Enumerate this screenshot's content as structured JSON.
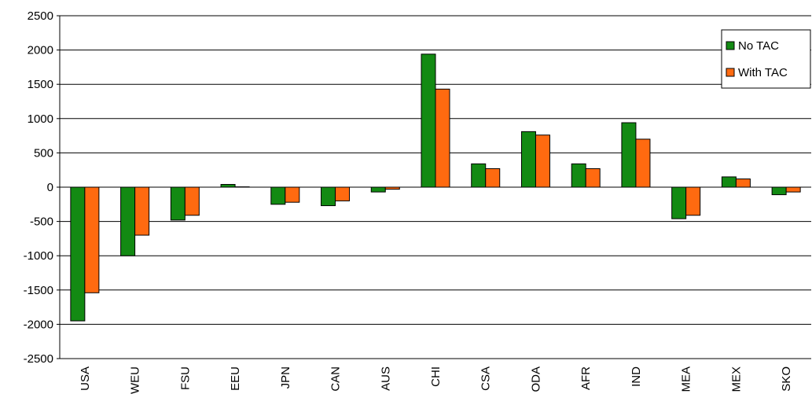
{
  "chart_data": {
    "type": "bar",
    "categories": [
      "USA",
      "WEU",
      "FSU",
      "EEU",
      "JPN",
      "CAN",
      "AUS",
      "CHI",
      "CSA",
      "ODA",
      "AFR",
      "IND",
      "MEA",
      "MEX",
      "SKO"
    ],
    "series": [
      {
        "name": "No TAC",
        "color": "#138a13",
        "values": [
          -1950,
          -1000,
          -480,
          40,
          -250,
          -270,
          -70,
          1940,
          340,
          810,
          340,
          940,
          -460,
          150,
          -110
        ]
      },
      {
        "name": "With TAC",
        "color": "#ff6a10",
        "values": [
          -1540,
          -700,
          -410,
          5,
          -220,
          -200,
          -30,
          1430,
          270,
          760,
          270,
          700,
          -410,
          120,
          -70
        ]
      }
    ],
    "ylim": [
      -2500,
      2500
    ],
    "yticks": [
      -2500,
      -2000,
      -1500,
      -1000,
      -500,
      0,
      500,
      1000,
      1500,
      2000,
      2500
    ],
    "grid": true,
    "legend": "upper right"
  }
}
